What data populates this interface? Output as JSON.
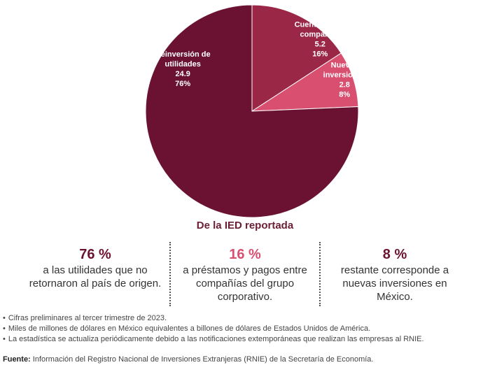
{
  "chart_data": {
    "type": "pie",
    "slices": [
      {
        "label_lines": [
          "Cuentas entre",
          "compañías"
        ],
        "value": 5.2,
        "value_text": "5.2",
        "percent": 16,
        "percent_text": "16%",
        "color": "#9b2747"
      },
      {
        "label_lines": [
          "Nuevas",
          "inversiones"
        ],
        "value": 2.8,
        "value_text": "2.8",
        "percent": 8,
        "percent_text": "8%",
        "color": "#d94f70"
      },
      {
        "label_lines": [
          "Reinversión de",
          "utilidades"
        ],
        "value": 24.9,
        "value_text": "24.9",
        "percent": 76,
        "percent_text": "76%",
        "color": "#6b1232"
      }
    ],
    "caption": "De la IED reportada"
  },
  "stats": [
    {
      "value": "76 %",
      "text": "a las utilidades que no retornaron al país de origen.",
      "color": "#6b1232"
    },
    {
      "value": "16 %",
      "text": "a préstamos y pagos entre compañías del grupo corporativo.",
      "color": "#d94f70"
    },
    {
      "value": "8 %",
      "text": "restante corresponde a nuevas inversiones en México.",
      "color": "#6b1232"
    }
  ],
  "notes": [
    "Cifras preliminares al tercer trimestre de 2023.",
    "Miles de millones de dólares en México equivalentes a billones de dólares de Estados Unidos de América.",
    "La estadística se actualiza periódicamente debido a las notificaciones extemporáneas que realizan las empresas al RNIE."
  ],
  "source": {
    "label": "Fuente:",
    "text": "Información del Registro Nacional de Inversiones Extranjeras (RNIE) de la Secretaría de Economía."
  }
}
